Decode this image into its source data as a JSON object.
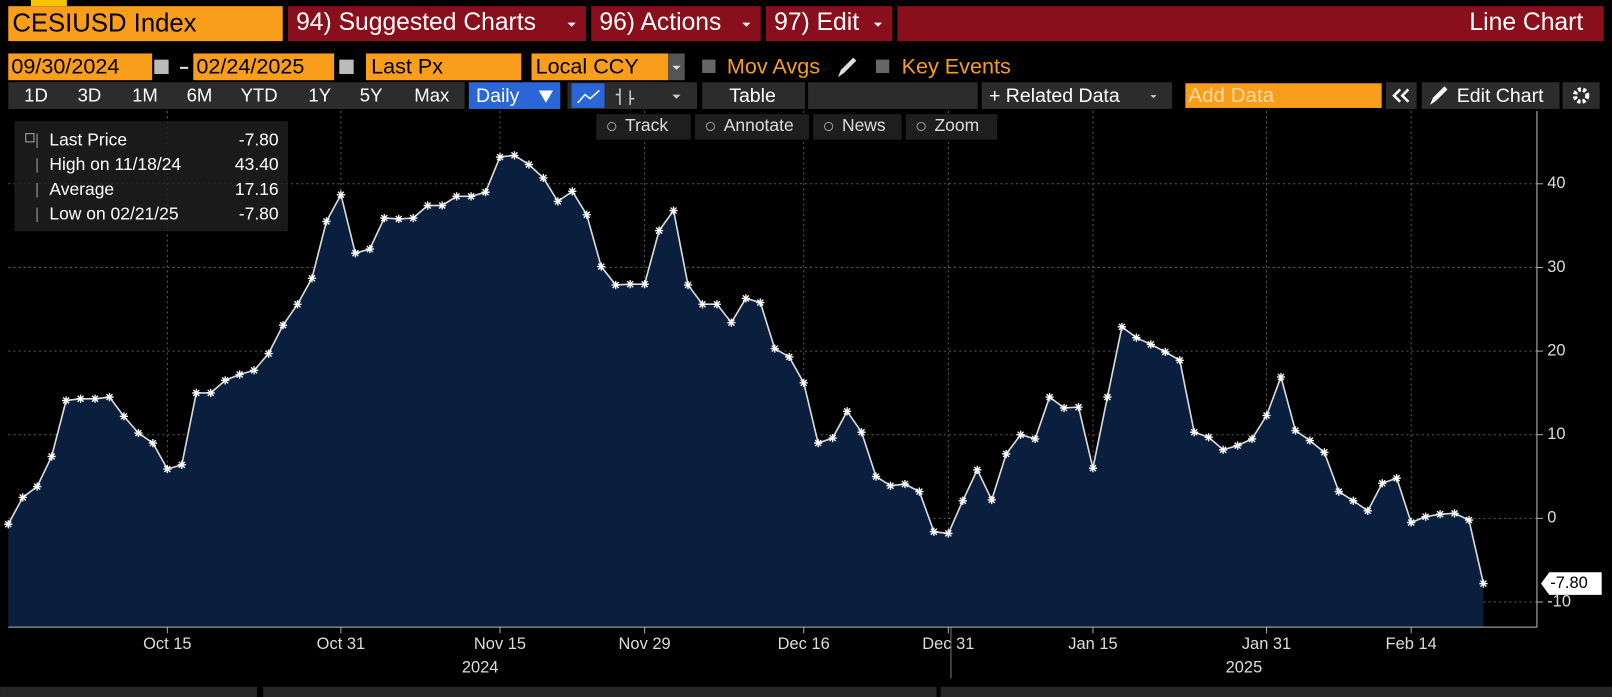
{
  "ui": {
    "ticker": "CESIUSD Index",
    "menu": [
      "94) Suggested Charts",
      "96) Actions",
      "97) Edit"
    ],
    "chart_kind": "Line Chart",
    "start_date": "09/30/2024",
    "end_date": "02/24/2025",
    "field": "Last Px",
    "currency": "Local CCY",
    "toggles": [
      "Mov Avgs",
      "Key Events"
    ],
    "ranges": [
      "1D",
      "3D",
      "1M",
      "6M",
      "YTD",
      "1Y",
      "5Y",
      "Max"
    ],
    "period": "Daily",
    "table": "Table",
    "related": "+ Related Data",
    "add_data": "Add Data",
    "edit_chart": "Edit Chart",
    "tools": [
      "Track",
      "Annotate",
      "News",
      "Zoom"
    ]
  },
  "chart_data": {
    "type": "line",
    "legend": [
      {
        "label": "Last Price",
        "value": "-7.80"
      },
      {
        "label": "High on 11/18/24",
        "value": "43.40"
      },
      {
        "label": "Average",
        "value": "17.16"
      },
      {
        "label": "Low on 02/21/25",
        "value": "-7.80"
      }
    ],
    "categories": [
      null,
      null,
      null,
      null,
      null,
      null,
      null,
      null,
      null,
      null,
      null,
      "Oct 15",
      null,
      null,
      null,
      null,
      null,
      null,
      null,
      null,
      null,
      null,
      null,
      "Oct 31",
      null,
      null,
      null,
      null,
      null,
      null,
      null,
      null,
      null,
      null,
      "Nov 15",
      null,
      null,
      null,
      null,
      null,
      null,
      null,
      null,
      null,
      "Nov 29",
      null,
      null,
      null,
      null,
      null,
      null,
      null,
      null,
      null,
      null,
      "Dec 16",
      null,
      null,
      null,
      null,
      null,
      null,
      null,
      null,
      null,
      "Dec 31",
      null,
      null,
      null,
      null,
      null,
      null,
      null,
      null,
      null,
      "Jan 15",
      null,
      null,
      null,
      null,
      null,
      null,
      null,
      null,
      null,
      null,
      null,
      "Jan 31",
      null,
      null,
      null,
      null,
      null,
      null,
      null,
      null,
      null,
      "Feb 14",
      null,
      null,
      null,
      null,
      null
    ],
    "years": [
      "2024",
      "2025"
    ],
    "values": [
      -0.7,
      2.5,
      3.8,
      7.4,
      14.1,
      14.3,
      14.3,
      14.5,
      12.2,
      10.2,
      9.0,
      5.9,
      6.4,
      15.0,
      15.0,
      16.5,
      17.2,
      17.7,
      19.7,
      23.1,
      25.6,
      28.7,
      35.5,
      38.7,
      31.7,
      32.2,
      35.9,
      35.8,
      35.9,
      37.4,
      37.4,
      38.5,
      38.5,
      39.0,
      43.2,
      43.4,
      42.3,
      40.7,
      37.9,
      39.1,
      36.3,
      30.1,
      27.9,
      28.0,
      28.0,
      34.4,
      36.8,
      27.9,
      25.6,
      25.6,
      23.4,
      26.3,
      25.8,
      20.3,
      19.3,
      16.2,
      9.0,
      9.6,
      12.8,
      10.3,
      5.0,
      3.9,
      4.1,
      3.2,
      -1.6,
      -1.8,
      2.1,
      5.8,
      2.2,
      7.7,
      10.0,
      9.5,
      14.5,
      13.2,
      13.3,
      6.0,
      14.5,
      22.9,
      21.6,
      20.8,
      19.9,
      18.9,
      10.3,
      9.7,
      8.2,
      8.7,
      9.5,
      12.3,
      16.9,
      10.5,
      9.3,
      7.9,
      3.2,
      2.1,
      0.9,
      4.2,
      4.8,
      -0.5,
      0.2,
      0.5,
      0.6,
      -0.2,
      -7.8
    ],
    "ylim": [
      -13,
      48.7
    ],
    "yticks": [
      -10,
      0,
      10,
      20,
      30,
      40
    ],
    "grid": true,
    "line_color": "#d9d9d9",
    "fill_color": "#0a1f3d"
  }
}
